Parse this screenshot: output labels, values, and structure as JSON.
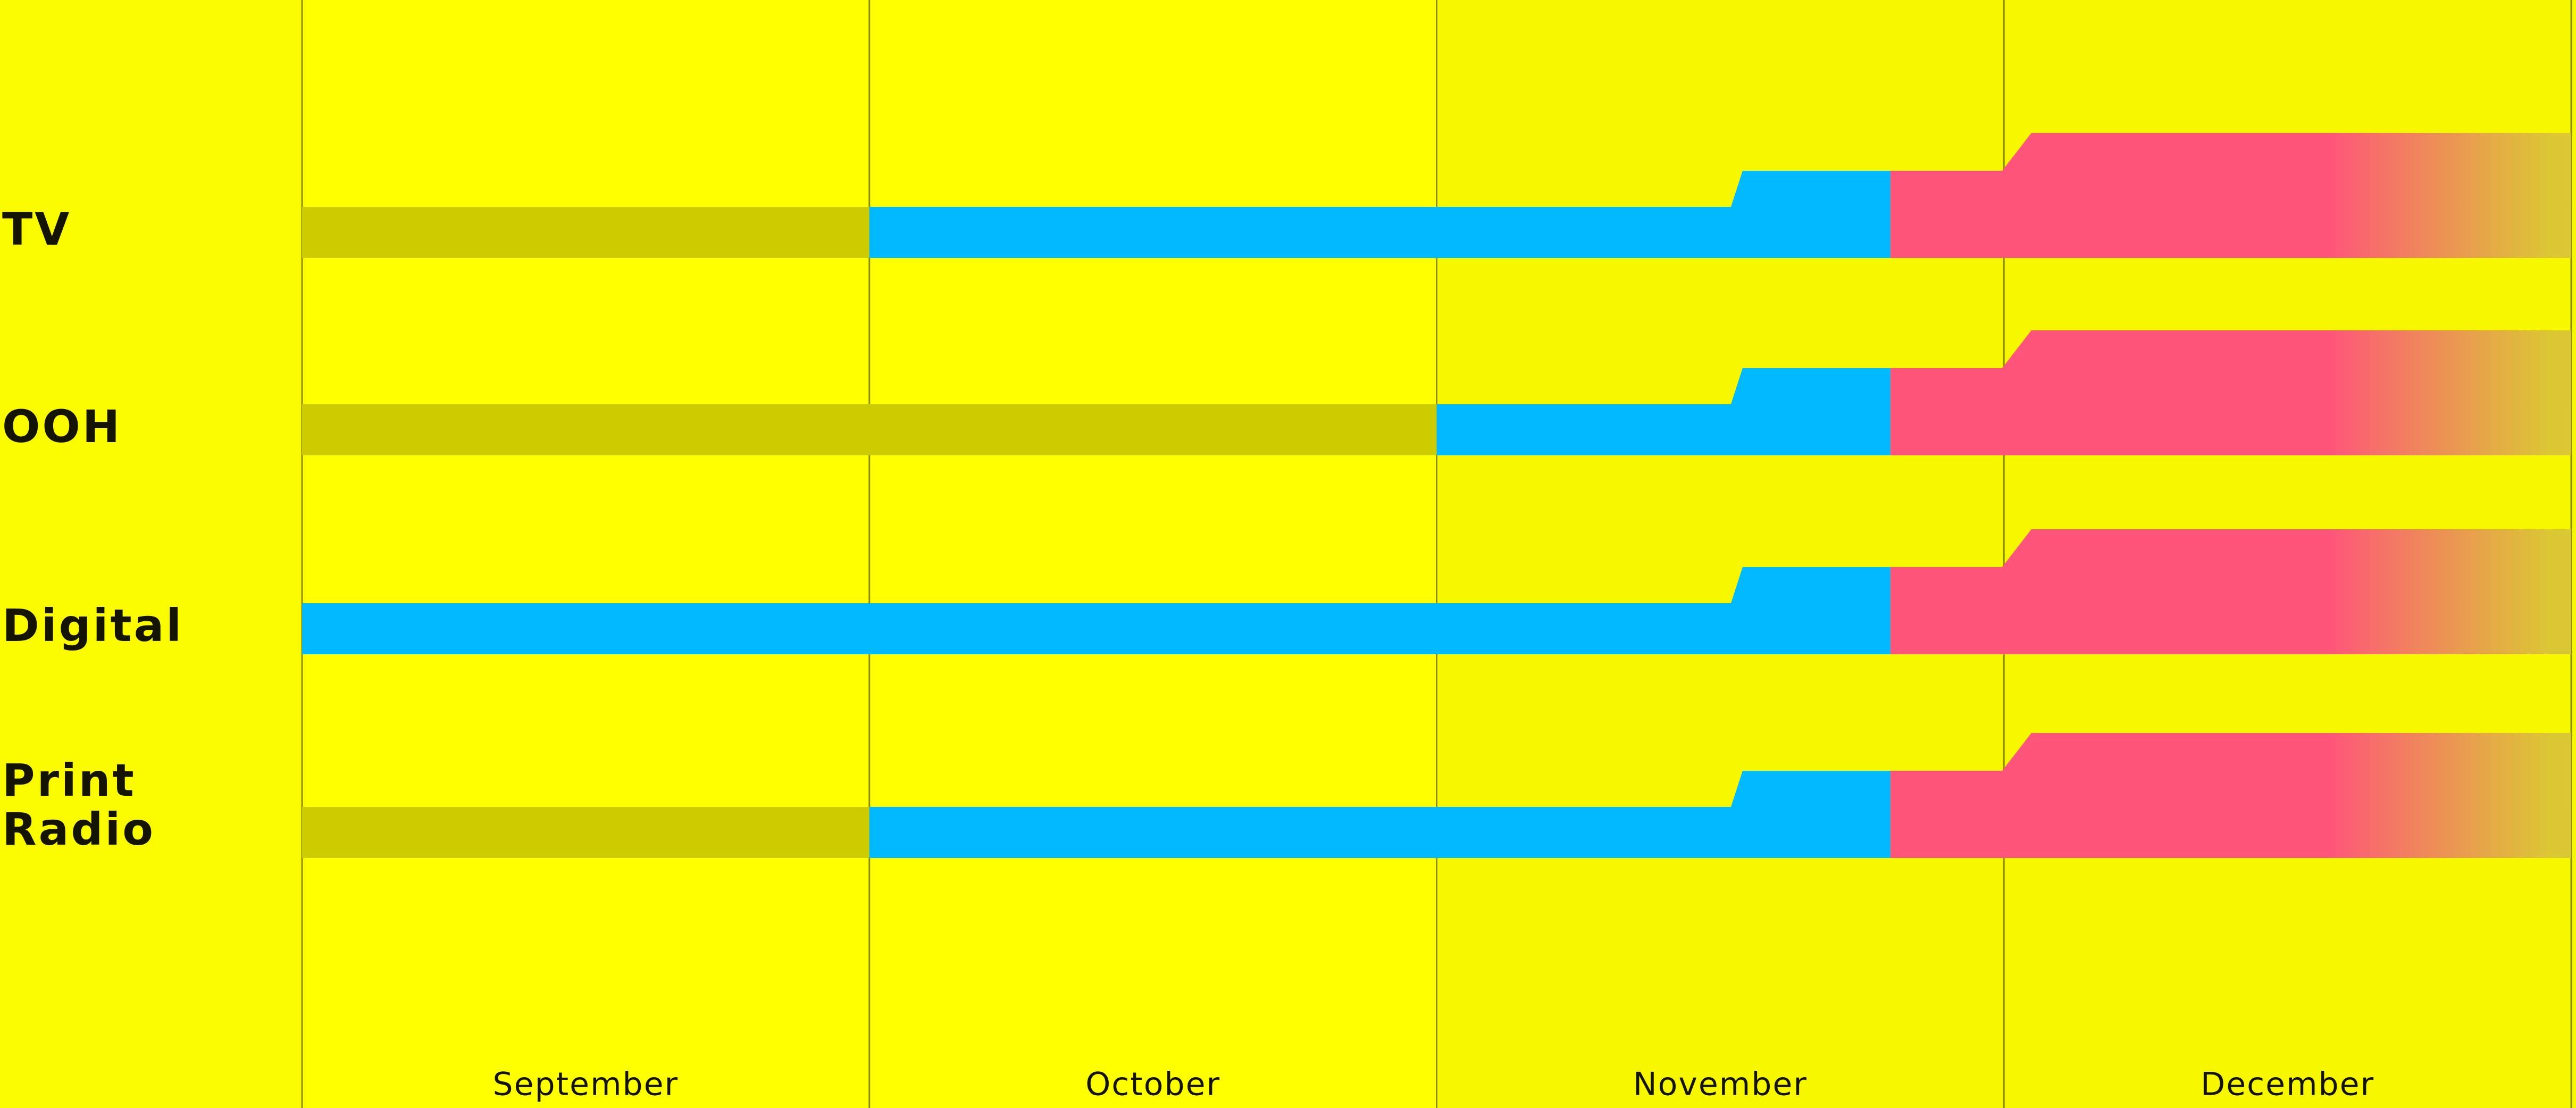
{
  "chart_data": {
    "type": "timeline",
    "categories": [
      "September",
      "October",
      "November",
      "December"
    ],
    "xlim": [
      0,
      4
    ],
    "rows": [
      {
        "label_lines": [
          "TV"
        ],
        "segments": [
          {
            "start": 0,
            "end": 1,
            "color": "#cccc00"
          },
          {
            "start": 1,
            "end": 2.8,
            "color": "#00b9ff"
          },
          {
            "start": 2.8,
            "end": 4,
            "color": "#ff557a"
          }
        ]
      },
      {
        "label_lines": [
          "OOH"
        ],
        "segments": [
          {
            "start": 0,
            "end": 2,
            "color": "#cccc00"
          },
          {
            "start": 2,
            "end": 2.8,
            "color": "#00b9ff"
          },
          {
            "start": 2.8,
            "end": 4,
            "color": "#ff557a"
          }
        ]
      },
      {
        "label_lines": [
          "Digital"
        ],
        "segments": [
          {
            "start": 0,
            "end": 2.8,
            "color": "#00b9ff"
          },
          {
            "start": 2.8,
            "end": 4,
            "color": "#ff557a"
          }
        ]
      },
      {
        "label_lines": [
          "Print",
          "Radio"
        ],
        "segments": [
          {
            "start": 0,
            "end": 1,
            "color": "#cccc00"
          },
          {
            "start": 1,
            "end": 2.8,
            "color": "#00b9ff"
          },
          {
            "start": 2.8,
            "end": 4,
            "color": "#ff557a"
          }
        ]
      }
    ]
  }
}
